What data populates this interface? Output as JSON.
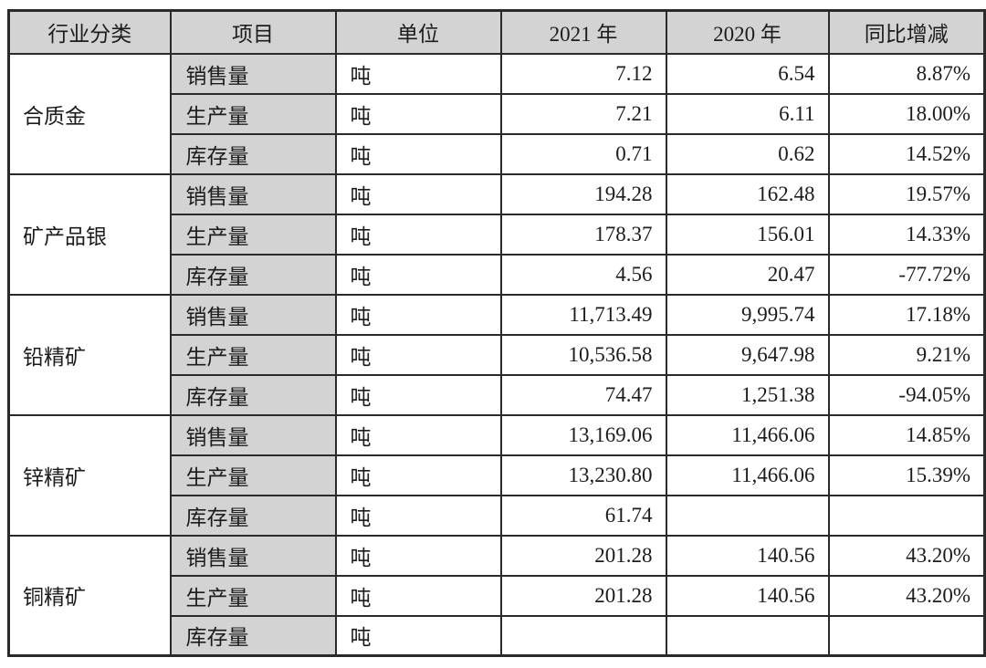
{
  "table": {
    "headers": [
      "行业分类",
      "项目",
      "单位",
      "2021 年",
      "2020 年",
      "同比增减"
    ],
    "groups": [
      {
        "category": "合质金",
        "rows": [
          {
            "item": "销售量",
            "unit": "吨",
            "y2021": "7.12",
            "y2020": "6.54",
            "yoy": "8.87%"
          },
          {
            "item": "生产量",
            "unit": "吨",
            "y2021": "7.21",
            "y2020": "6.11",
            "yoy": "18.00%"
          },
          {
            "item": "库存量",
            "unit": "吨",
            "y2021": "0.71",
            "y2020": "0.62",
            "yoy": "14.52%"
          }
        ]
      },
      {
        "category": "矿产品银",
        "rows": [
          {
            "item": "销售量",
            "unit": "吨",
            "y2021": "194.28",
            "y2020": "162.48",
            "yoy": "19.57%"
          },
          {
            "item": "生产量",
            "unit": "吨",
            "y2021": "178.37",
            "y2020": "156.01",
            "yoy": "14.33%"
          },
          {
            "item": "库存量",
            "unit": "吨",
            "y2021": "4.56",
            "y2020": "20.47",
            "yoy": "-77.72%"
          }
        ]
      },
      {
        "category": "铅精矿",
        "rows": [
          {
            "item": "销售量",
            "unit": "吨",
            "y2021": "11,713.49",
            "y2020": "9,995.74",
            "yoy": "17.18%"
          },
          {
            "item": "生产量",
            "unit": "吨",
            "y2021": "10,536.58",
            "y2020": "9,647.98",
            "yoy": "9.21%"
          },
          {
            "item": "库存量",
            "unit": "吨",
            "y2021": "74.47",
            "y2020": "1,251.38",
            "yoy": "-94.05%"
          }
        ]
      },
      {
        "category": "锌精矿",
        "rows": [
          {
            "item": "销售量",
            "unit": "吨",
            "y2021": "13,169.06",
            "y2020": "11,466.06",
            "yoy": "14.85%"
          },
          {
            "item": "生产量",
            "unit": "吨",
            "y2021": "13,230.80",
            "y2020": "11,466.06",
            "yoy": "15.39%"
          },
          {
            "item": "库存量",
            "unit": "吨",
            "y2021": "61.74",
            "y2020": "",
            "yoy": ""
          }
        ]
      },
      {
        "category": "铜精矿",
        "rows": [
          {
            "item": "销售量",
            "unit": "吨",
            "y2021": "201.28",
            "y2020": "140.56",
            "yoy": "43.20%"
          },
          {
            "item": "生产量",
            "unit": "吨",
            "y2021": "201.28",
            "y2020": "140.56",
            "yoy": "43.20%"
          },
          {
            "item": "库存量",
            "unit": "吨",
            "y2021": "",
            "y2020": "",
            "yoy": ""
          }
        ]
      }
    ]
  },
  "colors": {
    "header_bg": "#d3d3d3",
    "item_cell_bg": "#d3d3d3",
    "border": "#2a2a2a",
    "page_bg": "#ffffff"
  }
}
